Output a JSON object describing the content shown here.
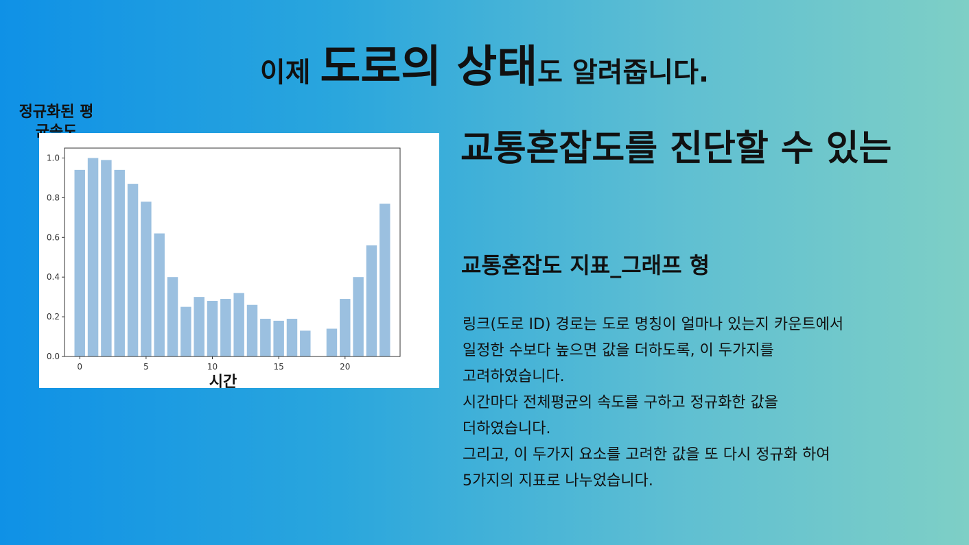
{
  "headline": {
    "part1": "이제 ",
    "emph1": "도로의 상태",
    "part2": "도 알려줍니다."
  },
  "section": {
    "title": "교통혼잡도를 진단할 수 있는",
    "subtitle": "교통혼잡도 지표_그래프 형"
  },
  "description": {
    "lines": [
      "링크(도로 ID) 경로는 도로 명칭이 얼마나 있는지 카운트에서",
      "일정한 수보다 높으면 값을 더하도록, 이 두가지를",
      "고려하였습니다.",
      "시간마다 전체평균의 속도를 구하고 정규화한 값을",
      "더하였습니다.",
      "그리고, 이 두가지 요소를 고려한 값을 또 다시 정규화 하여",
      "5가지의 지표로 나누었습니다."
    ]
  },
  "chart_data": {
    "type": "bar",
    "xlabel": "시간",
    "ylabel": "정규화된 평균속도",
    "x": [
      0,
      1,
      2,
      3,
      4,
      5,
      6,
      7,
      8,
      9,
      10,
      11,
      12,
      13,
      14,
      15,
      16,
      17,
      18,
      19,
      20,
      21,
      22,
      23
    ],
    "values": [
      0.94,
      1.0,
      0.99,
      0.94,
      0.87,
      0.78,
      0.62,
      0.4,
      0.25,
      0.3,
      0.28,
      0.29,
      0.32,
      0.26,
      0.19,
      0.18,
      0.19,
      0.13,
      null,
      0.14,
      0.29,
      0.4,
      0.56,
      0.77
    ],
    "xticks": [
      0,
      5,
      10,
      15,
      20
    ],
    "yticks": [
      0.0,
      0.2,
      0.4,
      0.6,
      0.8,
      1.0
    ],
    "xlim": [
      -1.15,
      24.15
    ],
    "ylim": [
      0,
      1.05
    ],
    "bar_color": "#9bc0e0",
    "grid": false
  }
}
